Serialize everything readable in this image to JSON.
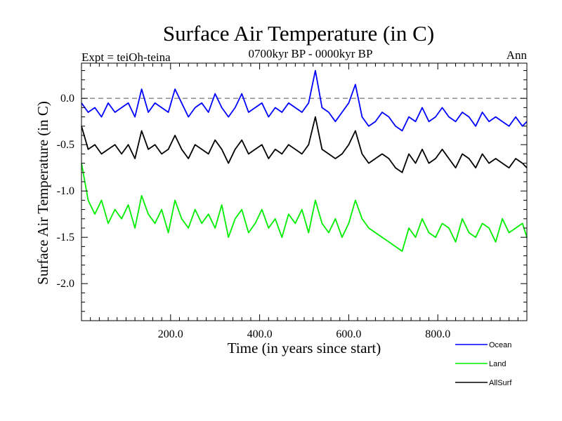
{
  "chart_data": {
    "type": "line",
    "title": "Surface Air Temperature (in C)",
    "subtitle_left": "Expt = teiOh-teina",
    "subtitle_center": "0700kyr BP - 0000kyr BP",
    "subtitle_right": "Ann",
    "xlabel": "Time (in years since start)",
    "ylabel": "Surface Air Temperature (in C)",
    "xlim": [
      0,
      1000
    ],
    "ylim": [
      -2.4,
      0.38
    ],
    "x_ticks": [
      {
        "value": 200,
        "label": "200.0"
      },
      {
        "value": 400,
        "label": "400.0"
      },
      {
        "value": 600,
        "label": "600.0"
      },
      {
        "value": 800,
        "label": "800.0"
      }
    ],
    "y_ticks": [
      {
        "value": 0.0,
        "label": "0.0"
      },
      {
        "value": -0.5,
        "label": "-0.5"
      },
      {
        "value": -1.0,
        "label": "-1.0"
      },
      {
        "value": -1.5,
        "label": "-1.5"
      },
      {
        "value": -2.0,
        "label": "-2.0"
      }
    ],
    "reference_line": 0.0,
    "series": [
      {
        "name": "Ocean",
        "color": "#0000ff",
        "x": [
          0,
          15,
          30,
          45,
          60,
          75,
          90,
          105,
          120,
          135,
          150,
          165,
          180,
          195,
          210,
          225,
          240,
          255,
          270,
          285,
          300,
          315,
          330,
          345,
          360,
          375,
          390,
          405,
          420,
          435,
          450,
          465,
          480,
          495,
          510,
          525,
          540,
          555,
          570,
          585,
          600,
          615,
          630,
          645,
          660,
          675,
          690,
          705,
          720,
          735,
          750,
          765,
          780,
          795,
          810,
          825,
          840,
          855,
          870,
          885,
          900,
          915,
          930,
          945,
          960,
          975,
          990,
          1000
        ],
        "values": [
          -0.05,
          -0.15,
          -0.1,
          -0.2,
          -0.05,
          -0.15,
          -0.1,
          -0.05,
          -0.2,
          0.1,
          -0.15,
          -0.05,
          -0.1,
          -0.15,
          0.1,
          -0.05,
          -0.2,
          -0.1,
          -0.05,
          -0.15,
          0.05,
          -0.1,
          -0.2,
          -0.1,
          0.05,
          -0.15,
          -0.1,
          -0.05,
          -0.2,
          -0.1,
          -0.15,
          -0.05,
          -0.1,
          -0.15,
          -0.05,
          0.3,
          -0.1,
          -0.15,
          -0.25,
          -0.15,
          -0.05,
          0.15,
          -0.2,
          -0.3,
          -0.25,
          -0.15,
          -0.2,
          -0.3,
          -0.35,
          -0.2,
          -0.25,
          -0.1,
          -0.25,
          -0.2,
          -0.1,
          -0.2,
          -0.25,
          -0.15,
          -0.2,
          -0.3,
          -0.15,
          -0.25,
          -0.2,
          -0.25,
          -0.3,
          -0.2,
          -0.3,
          -0.25
        ]
      },
      {
        "name": "Land",
        "color": "#00ee00",
        "x": [
          0,
          15,
          30,
          45,
          60,
          75,
          90,
          105,
          120,
          135,
          150,
          165,
          180,
          195,
          210,
          225,
          240,
          255,
          270,
          285,
          300,
          315,
          330,
          345,
          360,
          375,
          390,
          405,
          420,
          435,
          450,
          465,
          480,
          495,
          510,
          525,
          540,
          555,
          570,
          585,
          600,
          615,
          630,
          645,
          660,
          675,
          690,
          705,
          720,
          735,
          750,
          765,
          780,
          795,
          810,
          825,
          840,
          855,
          870,
          885,
          900,
          915,
          930,
          945,
          960,
          975,
          990,
          1000
        ],
        "values": [
          -0.7,
          -1.1,
          -1.25,
          -1.1,
          -1.35,
          -1.2,
          -1.3,
          -1.15,
          -1.4,
          -1.05,
          -1.25,
          -1.35,
          -1.2,
          -1.45,
          -1.1,
          -1.3,
          -1.4,
          -1.2,
          -1.35,
          -1.25,
          -1.4,
          -1.15,
          -1.5,
          -1.3,
          -1.2,
          -1.45,
          -1.35,
          -1.2,
          -1.4,
          -1.3,
          -1.5,
          -1.25,
          -1.35,
          -1.2,
          -1.45,
          -1.1,
          -1.35,
          -1.45,
          -1.3,
          -1.5,
          -1.35,
          -1.1,
          -1.3,
          -1.4,
          -1.45,
          -1.5,
          -1.55,
          -1.6,
          -1.65,
          -1.4,
          -1.5,
          -1.3,
          -1.45,
          -1.5,
          -1.35,
          -1.4,
          -1.55,
          -1.3,
          -1.45,
          -1.5,
          -1.35,
          -1.4,
          -1.55,
          -1.3,
          -1.45,
          -1.4,
          -1.35,
          -1.5
        ]
      },
      {
        "name": "AllSurf",
        "color": "#000000",
        "x": [
          0,
          15,
          30,
          45,
          60,
          75,
          90,
          105,
          120,
          135,
          150,
          165,
          180,
          195,
          210,
          225,
          240,
          255,
          270,
          285,
          300,
          315,
          330,
          345,
          360,
          375,
          390,
          405,
          420,
          435,
          450,
          465,
          480,
          495,
          510,
          525,
          540,
          555,
          570,
          585,
          600,
          615,
          630,
          645,
          660,
          675,
          690,
          705,
          720,
          735,
          750,
          765,
          780,
          795,
          810,
          825,
          840,
          855,
          870,
          885,
          900,
          915,
          930,
          945,
          960,
          975,
          990,
          1000
        ],
        "values": [
          -0.3,
          -0.55,
          -0.5,
          -0.6,
          -0.55,
          -0.5,
          -0.6,
          -0.5,
          -0.65,
          -0.35,
          -0.55,
          -0.5,
          -0.6,
          -0.55,
          -0.4,
          -0.55,
          -0.65,
          -0.5,
          -0.55,
          -0.6,
          -0.45,
          -0.55,
          -0.7,
          -0.55,
          -0.45,
          -0.6,
          -0.55,
          -0.5,
          -0.65,
          -0.55,
          -0.6,
          -0.5,
          -0.55,
          -0.6,
          -0.5,
          -0.2,
          -0.55,
          -0.6,
          -0.65,
          -0.6,
          -0.5,
          -0.35,
          -0.6,
          -0.7,
          -0.65,
          -0.6,
          -0.65,
          -0.75,
          -0.8,
          -0.6,
          -0.7,
          -0.55,
          -0.7,
          -0.65,
          -0.55,
          -0.65,
          -0.75,
          -0.6,
          -0.65,
          -0.75,
          -0.6,
          -0.7,
          -0.65,
          -0.7,
          -0.75,
          -0.65,
          -0.7,
          -0.75
        ]
      }
    ],
    "legend": {
      "placement": "bottom-right",
      "entries": [
        {
          "label": "Ocean",
          "color": "#0000ff"
        },
        {
          "label": "Land",
          "color": "#00ee00"
        },
        {
          "label": "AllSurf",
          "color": "#000000"
        }
      ]
    }
  }
}
